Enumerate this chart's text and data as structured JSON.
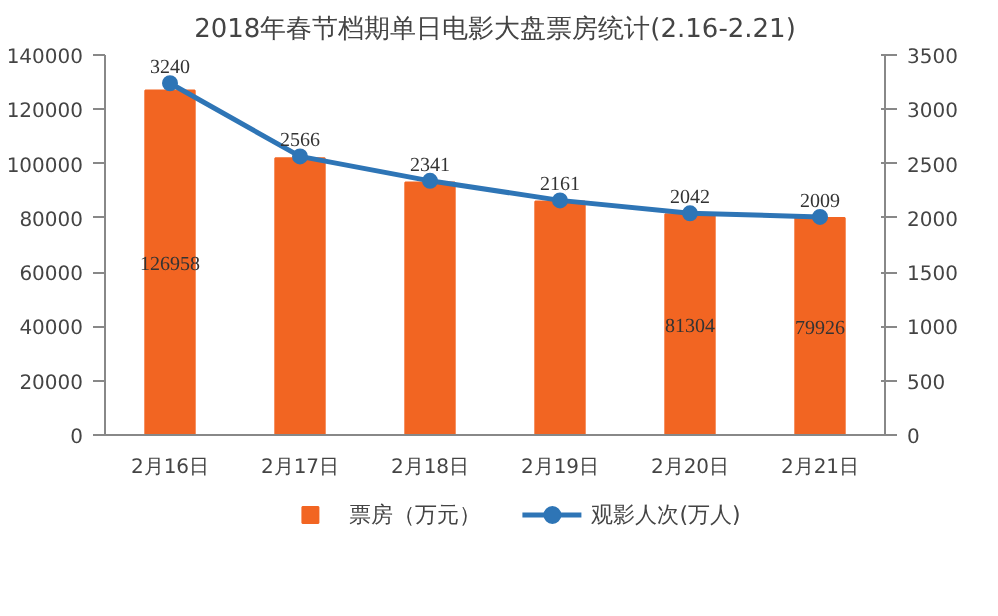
{
  "chart_data": {
    "type": "bar",
    "title": "2018年春节档期单日电影大盘票房统计(2.16-2.21)",
    "categories": [
      "2月16日",
      "2月17日",
      "2月18日",
      "2月19日",
      "2月20日",
      "2月21日"
    ],
    "series": [
      {
        "name": "票房（万元）",
        "color": "#f26522",
        "values": [
          126958,
          102000,
          93000,
          86000,
          81304,
          79926
        ],
        "value_labels": [
          "126958",
          null,
          null,
          null,
          "81304",
          "79926"
        ]
      },
      {
        "name": "观影人次(万人)",
        "type": "line",
        "axis": "y2",
        "color": "#2e75b6",
        "values": [
          3240,
          2566,
          2341,
          2161,
          2042,
          2009
        ],
        "value_labels": [
          "3240",
          "2566",
          "2341",
          "2161",
          "2042",
          "2009"
        ]
      }
    ],
    "ylim": [
      0,
      140000
    ],
    "yticks": [
      0,
      20000,
      40000,
      60000,
      80000,
      100000,
      120000,
      140000
    ],
    "y2lim": [
      0,
      3500
    ],
    "y2ticks": [
      0,
      500,
      1000,
      1500,
      2000,
      2500,
      3000,
      3500
    ],
    "grid": false,
    "legend": "bottom",
    "marker": "circle"
  }
}
